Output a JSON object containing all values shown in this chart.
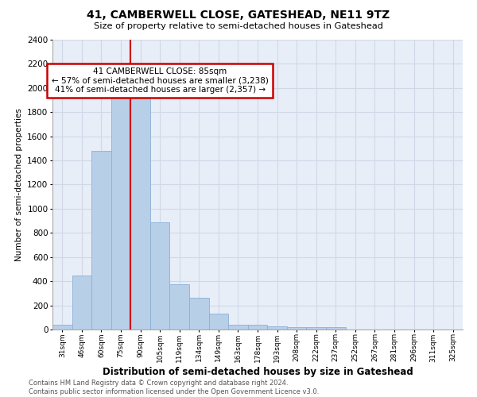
{
  "title": "41, CAMBERWELL CLOSE, GATESHEAD, NE11 9TZ",
  "subtitle": "Size of property relative to semi-detached houses in Gateshead",
  "xlabel": "Distribution of semi-detached houses by size in Gateshead",
  "ylabel": "Number of semi-detached properties",
  "categories": [
    "31sqm",
    "46sqm",
    "60sqm",
    "75sqm",
    "90sqm",
    "105sqm",
    "119sqm",
    "134sqm",
    "149sqm",
    "163sqm",
    "178sqm",
    "193sqm",
    "208sqm",
    "222sqm",
    "237sqm",
    "252sqm",
    "267sqm",
    "281sqm",
    "296sqm",
    "311sqm",
    "325sqm"
  ],
  "values": [
    40,
    450,
    1480,
    2000,
    2000,
    890,
    375,
    260,
    130,
    38,
    38,
    25,
    20,
    20,
    20,
    0,
    0,
    0,
    0,
    0,
    0
  ],
  "bar_color": "#b8cfe8",
  "bar_edge_color": "#8ab0d8",
  "highlight_line_index": 4,
  "annotation_line1": "41 CAMBERWELL CLOSE: 85sqm",
  "annotation_line2": "← 57% of semi-detached houses are smaller (3,238)",
  "annotation_line3": "41% of semi-detached houses are larger (2,357) →",
  "annotation_box_color": "#ffffff",
  "annotation_box_edge_color": "#cc0000",
  "ylim": [
    0,
    2400
  ],
  "yticks": [
    0,
    200,
    400,
    600,
    800,
    1000,
    1200,
    1400,
    1600,
    1800,
    2000,
    2200,
    2400
  ],
  "grid_color": "#d0d8e8",
  "background_color": "#e8eef8",
  "footer_line1": "Contains HM Land Registry data © Crown copyright and database right 2024.",
  "footer_line2": "Contains public sector information licensed under the Open Government Licence v3.0."
}
